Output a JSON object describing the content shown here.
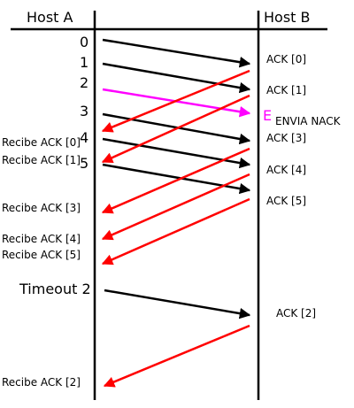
{
  "hosts": {
    "a": "Host A",
    "b": "Host B"
  },
  "frames": [
    "0",
    "1",
    "2",
    "3",
    "4",
    "5"
  ],
  "timeout": "Timeout 2",
  "error_mark": "E",
  "nack": "ENVIA NACK",
  "acks_b": [
    "ACK [0]",
    "ACK [1]",
    "ACK [3]",
    "ACK [4]",
    "ACK [5]",
    "ACK [2]"
  ],
  "recibe": [
    "Recibe ACK [0]",
    "Recibe ACK [1]",
    "Recibe ACK [3]",
    "Recibe ACK [4]",
    "Recibe ACK [5]",
    "Recibe ACK [2]"
  ],
  "colors": {
    "frame": "#000000",
    "ack": "#ff0000",
    "error_frame": "#ff00ff"
  }
}
